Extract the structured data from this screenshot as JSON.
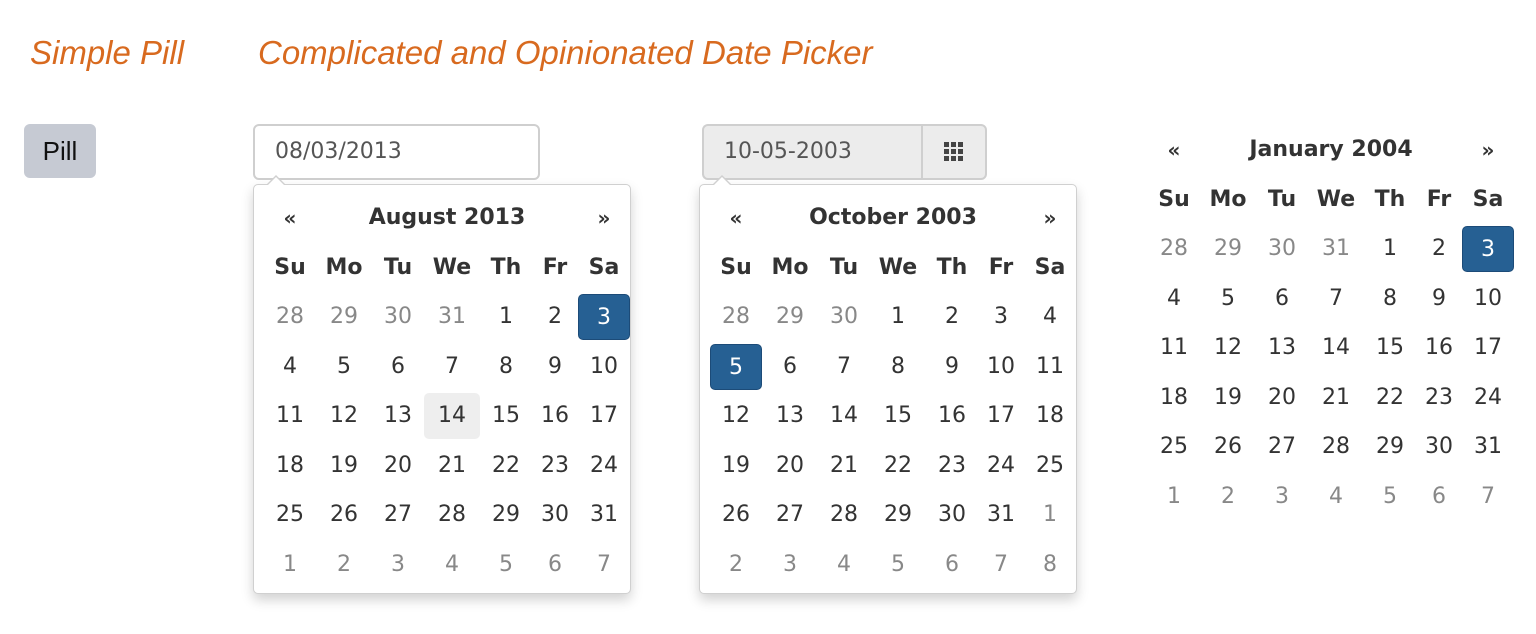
{
  "headings": {
    "simple_pill": "Simple Pill",
    "date_picker": "Complicated and Opinionated Date Picker"
  },
  "pill": {
    "label": "Pill"
  },
  "colors": {
    "heading": "#d86a1f",
    "active": "#266093",
    "pill_bg": "#c6cad3"
  },
  "calendars": [
    {
      "input_value": "08/03/2013",
      "has_addon": false,
      "addon_icon": "",
      "title": "August 2013",
      "prev": "«",
      "next": "»",
      "weekdays": [
        "Su",
        "Mo",
        "Tu",
        "We",
        "Th",
        "Fr",
        "Sa"
      ],
      "weeks": [
        [
          [
            "28",
            "old"
          ],
          [
            "29",
            "old"
          ],
          [
            "30",
            "old"
          ],
          [
            "31",
            "old"
          ],
          [
            "1",
            ""
          ],
          [
            "2",
            ""
          ],
          [
            "3",
            "active"
          ]
        ],
        [
          [
            "4",
            ""
          ],
          [
            "5",
            ""
          ],
          [
            "6",
            ""
          ],
          [
            "7",
            ""
          ],
          [
            "8",
            ""
          ],
          [
            "9",
            ""
          ],
          [
            "10",
            ""
          ]
        ],
        [
          [
            "11",
            ""
          ],
          [
            "12",
            ""
          ],
          [
            "13",
            ""
          ],
          [
            "14",
            "hover"
          ],
          [
            "15",
            ""
          ],
          [
            "16",
            ""
          ],
          [
            "17",
            ""
          ]
        ],
        [
          [
            "18",
            ""
          ],
          [
            "19",
            ""
          ],
          [
            "20",
            ""
          ],
          [
            "21",
            ""
          ],
          [
            "22",
            ""
          ],
          [
            "23",
            ""
          ],
          [
            "24",
            ""
          ]
        ],
        [
          [
            "25",
            ""
          ],
          [
            "26",
            ""
          ],
          [
            "27",
            ""
          ],
          [
            "28",
            ""
          ],
          [
            "29",
            ""
          ],
          [
            "30",
            ""
          ],
          [
            "31",
            ""
          ]
        ],
        [
          [
            "1",
            "old"
          ],
          [
            "2",
            "old"
          ],
          [
            "3",
            "old"
          ],
          [
            "4",
            "old"
          ],
          [
            "5",
            "old"
          ],
          [
            "6",
            "old"
          ],
          [
            "7",
            "old"
          ]
        ]
      ]
    },
    {
      "input_value": "10-05-2003",
      "has_addon": true,
      "addon_icon": "grid-icon",
      "title": "October 2003",
      "prev": "«",
      "next": "»",
      "weekdays": [
        "Su",
        "Mo",
        "Tu",
        "We",
        "Th",
        "Fr",
        "Sa"
      ],
      "weeks": [
        [
          [
            "28",
            "old"
          ],
          [
            "29",
            "old"
          ],
          [
            "30",
            "old"
          ],
          [
            "1",
            ""
          ],
          [
            "2",
            ""
          ],
          [
            "3",
            ""
          ],
          [
            "4",
            ""
          ]
        ],
        [
          [
            "5",
            "active"
          ],
          [
            "6",
            ""
          ],
          [
            "7",
            ""
          ],
          [
            "8",
            ""
          ],
          [
            "9",
            ""
          ],
          [
            "10",
            ""
          ],
          [
            "11",
            ""
          ]
        ],
        [
          [
            "12",
            ""
          ],
          [
            "13",
            ""
          ],
          [
            "14",
            ""
          ],
          [
            "15",
            ""
          ],
          [
            "16",
            ""
          ],
          [
            "17",
            ""
          ],
          [
            "18",
            ""
          ]
        ],
        [
          [
            "19",
            ""
          ],
          [
            "20",
            ""
          ],
          [
            "21",
            ""
          ],
          [
            "22",
            ""
          ],
          [
            "23",
            ""
          ],
          [
            "24",
            ""
          ],
          [
            "25",
            ""
          ]
        ],
        [
          [
            "26",
            ""
          ],
          [
            "27",
            ""
          ],
          [
            "28",
            ""
          ],
          [
            "29",
            ""
          ],
          [
            "30",
            ""
          ],
          [
            "31",
            ""
          ],
          [
            "1",
            "old"
          ]
        ],
        [
          [
            "2",
            "old"
          ],
          [
            "3",
            "old"
          ],
          [
            "4",
            "old"
          ],
          [
            "5",
            "old"
          ],
          [
            "6",
            "old"
          ],
          [
            "7",
            "old"
          ],
          [
            "8",
            "old"
          ]
        ]
      ]
    },
    {
      "title": "January 2004",
      "prev": "«",
      "next": "»",
      "weekdays": [
        "Su",
        "Mo",
        "Tu",
        "We",
        "Th",
        "Fr",
        "Sa"
      ],
      "weeks": [
        [
          [
            "28",
            "old"
          ],
          [
            "29",
            "old"
          ],
          [
            "30",
            "old"
          ],
          [
            "31",
            "old"
          ],
          [
            "1",
            ""
          ],
          [
            "2",
            ""
          ],
          [
            "3",
            "active"
          ]
        ],
        [
          [
            "4",
            ""
          ],
          [
            "5",
            ""
          ],
          [
            "6",
            ""
          ],
          [
            "7",
            ""
          ],
          [
            "8",
            ""
          ],
          [
            "9",
            ""
          ],
          [
            "10",
            ""
          ]
        ],
        [
          [
            "11",
            ""
          ],
          [
            "12",
            ""
          ],
          [
            "13",
            ""
          ],
          [
            "14",
            ""
          ],
          [
            "15",
            ""
          ],
          [
            "16",
            ""
          ],
          [
            "17",
            ""
          ]
        ],
        [
          [
            "18",
            ""
          ],
          [
            "19",
            ""
          ],
          [
            "20",
            ""
          ],
          [
            "21",
            ""
          ],
          [
            "22",
            ""
          ],
          [
            "23",
            ""
          ],
          [
            "24",
            ""
          ]
        ],
        [
          [
            "25",
            ""
          ],
          [
            "26",
            ""
          ],
          [
            "27",
            ""
          ],
          [
            "28",
            ""
          ],
          [
            "29",
            ""
          ],
          [
            "30",
            ""
          ],
          [
            "31",
            ""
          ]
        ],
        [
          [
            "1",
            "old"
          ],
          [
            "2",
            "old"
          ],
          [
            "3",
            "old"
          ],
          [
            "4",
            "old"
          ],
          [
            "5",
            "old"
          ],
          [
            "6",
            "old"
          ],
          [
            "7",
            "old"
          ]
        ]
      ]
    }
  ]
}
